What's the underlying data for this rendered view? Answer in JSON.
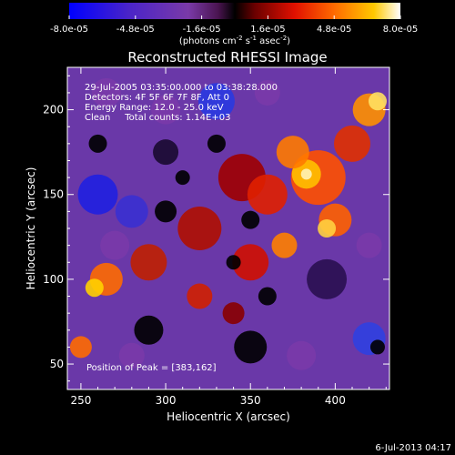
{
  "colorbar": {
    "ticks": [
      "-8.0e-05",
      "-4.8e-05",
      "-1.6e-05",
      "1.6e-05",
      "4.8e-05",
      "8.0e-05"
    ],
    "tick_values": [
      -8e-05,
      -4.8e-05,
      -1.6e-05,
      1.6e-05,
      4.8e-05,
      8e-05
    ],
    "range": [
      -8e-05,
      8e-05
    ],
    "unit_prefix": "(photons cm",
    "unit_exp1": "-2",
    "unit_mid": " s",
    "unit_exp2": "-1",
    "unit_mid2": " asec",
    "unit_exp3": "-2",
    "unit_suffix": ")",
    "colors": [
      "#0000ff",
      "#5020c0",
      "#7a3aa8",
      "#6a2070",
      "#000000",
      "#7a0000",
      "#e01000",
      "#ff6a00",
      "#ffc000",
      "#ffffff"
    ]
  },
  "chart_data": {
    "type": "heatmap",
    "title": "Reconstructed RHESSI Image",
    "xlabel": "Heliocentric X (arcsec)",
    "ylabel": "Heliocentric Y (arcsec)",
    "xlim": [
      242,
      432
    ],
    "ylim": [
      35,
      225
    ],
    "xticks": [
      250,
      300,
      350,
      400
    ],
    "yticks": [
      50,
      100,
      150,
      200
    ],
    "annotations": [
      "29-Jul-2005 03:35:00.000 to 03:38:28.000",
      "Detectors: 4F 5F 6F 7F 8F, Att 0",
      "Energy Range: 12.0 - 25.0 keV",
      "Clean     Total counts: 1.14E+03"
    ],
    "peak_label": "Position of Peak = [383,162]",
    "peak": [
      383,
      162
    ],
    "grid": false
  },
  "footer": {
    "timestamp": "6-Jul-2013 04:17"
  }
}
